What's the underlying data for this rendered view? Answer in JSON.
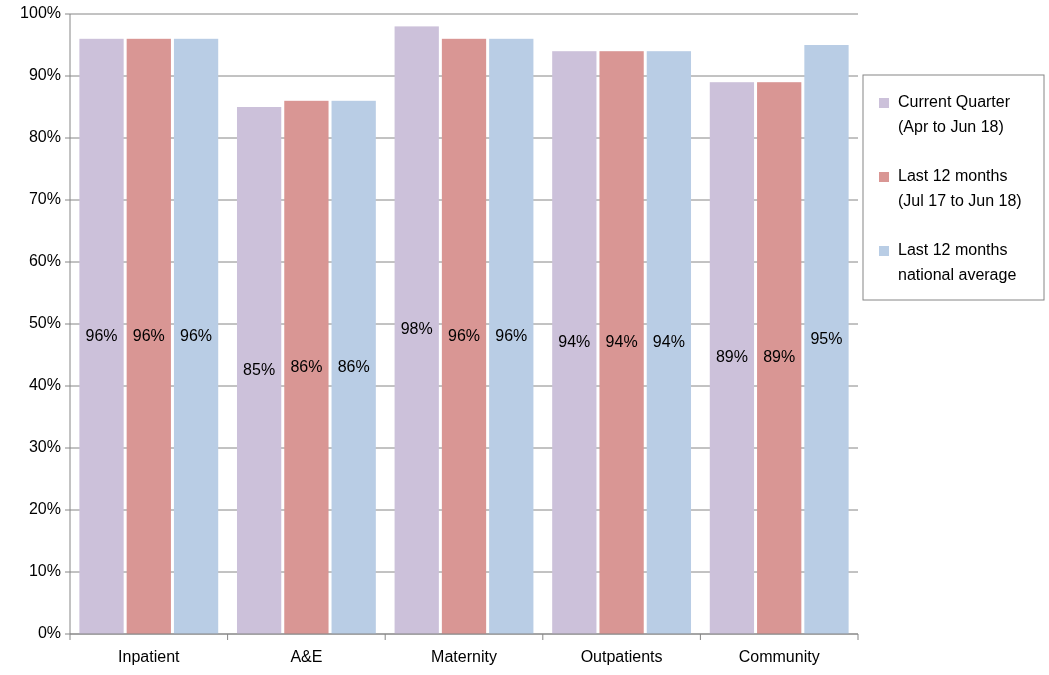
{
  "chart_data": {
    "type": "bar",
    "categories": [
      "Inpatient",
      "A&E",
      "Maternity",
      "Outpatients",
      "Community"
    ],
    "series": [
      {
        "name": "Current Quarter\n(Apr to Jun 18)",
        "color": "#ccc1da",
        "values": [
          96,
          85,
          98,
          94,
          89
        ],
        "value_labels": [
          "96%",
          "85%",
          "98%",
          "94%",
          "89%"
        ]
      },
      {
        "name": "Last 12 months\n(Jul 17 to Jun 18)",
        "color": "#d99694",
        "values": [
          96,
          86,
          96,
          94,
          89
        ],
        "value_labels": [
          "96%",
          "86%",
          "96%",
          "94%",
          "89%"
        ]
      },
      {
        "name": "Last 12 months\nnational average",
        "color": "#b9cde5",
        "values": [
          96,
          86,
          96,
          94,
          95
        ],
        "value_labels": [
          "96%",
          "86%",
          "96%",
          "94%",
          "95%"
        ]
      }
    ],
    "ylim": [
      0,
      100
    ],
    "yticks": [
      {
        "value": 0,
        "label": "0%"
      },
      {
        "value": 10,
        "label": "10%"
      },
      {
        "value": 20,
        "label": "20%"
      },
      {
        "value": 30,
        "label": "30%"
      },
      {
        "value": 40,
        "label": "40%"
      },
      {
        "value": 50,
        "label": "50%"
      },
      {
        "value": 60,
        "label": "60%"
      },
      {
        "value": 70,
        "label": "70%"
      },
      {
        "value": 80,
        "label": "80%"
      },
      {
        "value": 90,
        "label": "90%"
      },
      {
        "value": 100,
        "label": "100%"
      }
    ],
    "grid": "y",
    "legend": "right"
  }
}
